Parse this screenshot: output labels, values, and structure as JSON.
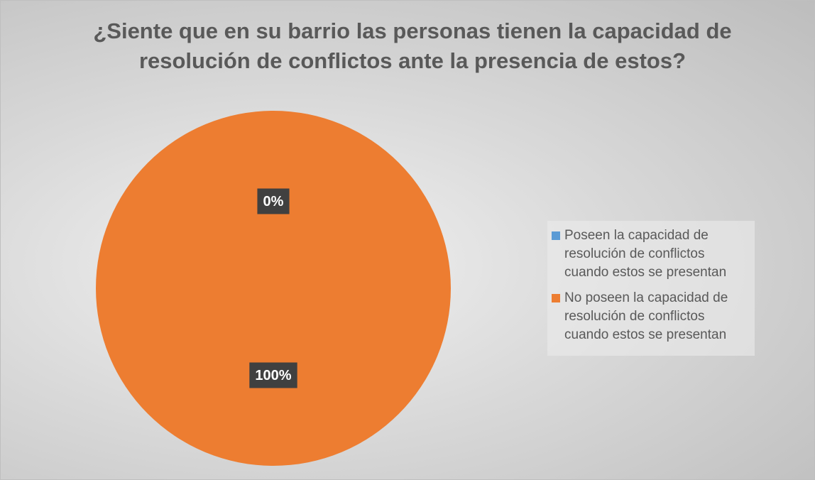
{
  "chart_data": {
    "type": "pie",
    "title": "¿Siente que en su barrio las personas tienen la capacidad de resolución de conflictos ante la presencia de estos?",
    "categories": [
      "Poseen la capacidad de resolución de conflictos cuando estos se presentan",
      "No poseen la capacidad de resolución de conflictos cuando estos se presentan"
    ],
    "values": [
      0,
      100
    ],
    "value_labels": [
      "0%",
      "100%"
    ],
    "colors": [
      "#5b9bd5",
      "#ed7d31"
    ],
    "legend": "right"
  }
}
